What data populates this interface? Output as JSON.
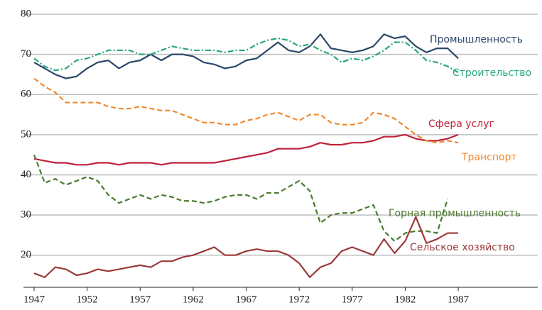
{
  "chart_data": {
    "type": "line",
    "x": [
      1947,
      1948,
      1949,
      1950,
      1951,
      1952,
      1953,
      1954,
      1955,
      1956,
      1957,
      1958,
      1959,
      1960,
      1961,
      1962,
      1963,
      1964,
      1965,
      1966,
      1967,
      1968,
      1969,
      1970,
      1971,
      1972,
      1973,
      1974,
      1975,
      1976,
      1977,
      1978,
      1979,
      1980,
      1981,
      1982,
      1983,
      1984,
      1985,
      1986,
      1987
    ],
    "xlim": [
      1946,
      1994.5
    ],
    "xticks": [
      1947,
      1952,
      1957,
      1962,
      1967,
      1972,
      1977,
      1982,
      1987
    ],
    "ylim": [
      12,
      80
    ],
    "yticks": [
      20,
      30,
      40,
      50,
      60,
      70,
      80
    ],
    "grid": true,
    "series": [
      {
        "name": "Промышленность",
        "color": "#2b4768",
        "style": "solid",
        "values": [
          68,
          66.5,
          65,
          64,
          64.5,
          66.5,
          68,
          68.5,
          66.5,
          68,
          68.5,
          70,
          68.5,
          70,
          70,
          69.5,
          68,
          67.5,
          66.5,
          67,
          68.5,
          69,
          71,
          73,
          71,
          70.5,
          72,
          75,
          71.5,
          71,
          70.5,
          71,
          72,
          75,
          74,
          74.5,
          72,
          70.5,
          71.5,
          71.5,
          69
        ]
      },
      {
        "name": "Строительство",
        "color": "#2aa87a",
        "style": "dashdot",
        "values": [
          69,
          67,
          66,
          66.5,
          68.5,
          69,
          70,
          71,
          71,
          71,
          70,
          70,
          71,
          72,
          71.5,
          71,
          71,
          71,
          70.5,
          71,
          71,
          72.5,
          73.5,
          74,
          73.5,
          72,
          72.5,
          71,
          70,
          68,
          69,
          68.5,
          69.5,
          71,
          73,
          73,
          71,
          68.5,
          68,
          67,
          65.5
        ]
      },
      {
        "name": "Сфера услуг",
        "color": "#c0223b",
        "style": "solid",
        "values": [
          44,
          43.5,
          43,
          43,
          42.5,
          42.5,
          43,
          43,
          42.5,
          43,
          43,
          43,
          42.5,
          43,
          43,
          43,
          43,
          43,
          43.5,
          44,
          44.5,
          45,
          45.5,
          46.5,
          46.5,
          46.5,
          47,
          48,
          47.5,
          47.5,
          48,
          48,
          48.5,
          49.5,
          49.5,
          50,
          49,
          48.5,
          48.5,
          49,
          50
        ]
      },
      {
        "name": "Транспорт",
        "color": "#f0892f",
        "style": "dashed",
        "values": [
          64,
          62,
          60.5,
          58,
          58,
          58,
          58,
          57,
          56.5,
          56.5,
          57,
          56.5,
          56,
          56,
          55,
          54,
          53,
          53,
          52.5,
          52.5,
          53.5,
          54,
          55,
          55.5,
          54.5,
          53.5,
          55,
          55,
          53,
          52.5,
          52.5,
          53,
          55.5,
          55,
          54,
          52,
          50,
          48.5,
          48,
          48.5,
          48
        ]
      },
      {
        "name": "Горная промышленность",
        "color": "#4a7a2e",
        "style": "dashed",
        "values": [
          45,
          38,
          39,
          37.5,
          38.5,
          39.5,
          38.5,
          35,
          33,
          34,
          35,
          34,
          35,
          34.5,
          33.5,
          33.5,
          33,
          33.5,
          34.5,
          35,
          35,
          34,
          35.5,
          35.5,
          37,
          38.5,
          36,
          28,
          30,
          30.5,
          30.5,
          31.5,
          32.5,
          26,
          23.5,
          25.5,
          26,
          26,
          25.5,
          34,
          null
        ]
      },
      {
        "name": "Сельское хозяйство",
        "color": "#9b3a3a",
        "style": "solid",
        "values": [
          15.5,
          14.5,
          17,
          16.5,
          15,
          15.5,
          16.5,
          16,
          16.5,
          17,
          17.5,
          17,
          18.5,
          18.5,
          19.5,
          20,
          21,
          22,
          20,
          20,
          21,
          21.5,
          21,
          21,
          20,
          18,
          14.5,
          17,
          18,
          21,
          22,
          21,
          20,
          24,
          20.5,
          23.5,
          29.5,
          23,
          24,
          25.5,
          25.5
        ]
      }
    ]
  }
}
